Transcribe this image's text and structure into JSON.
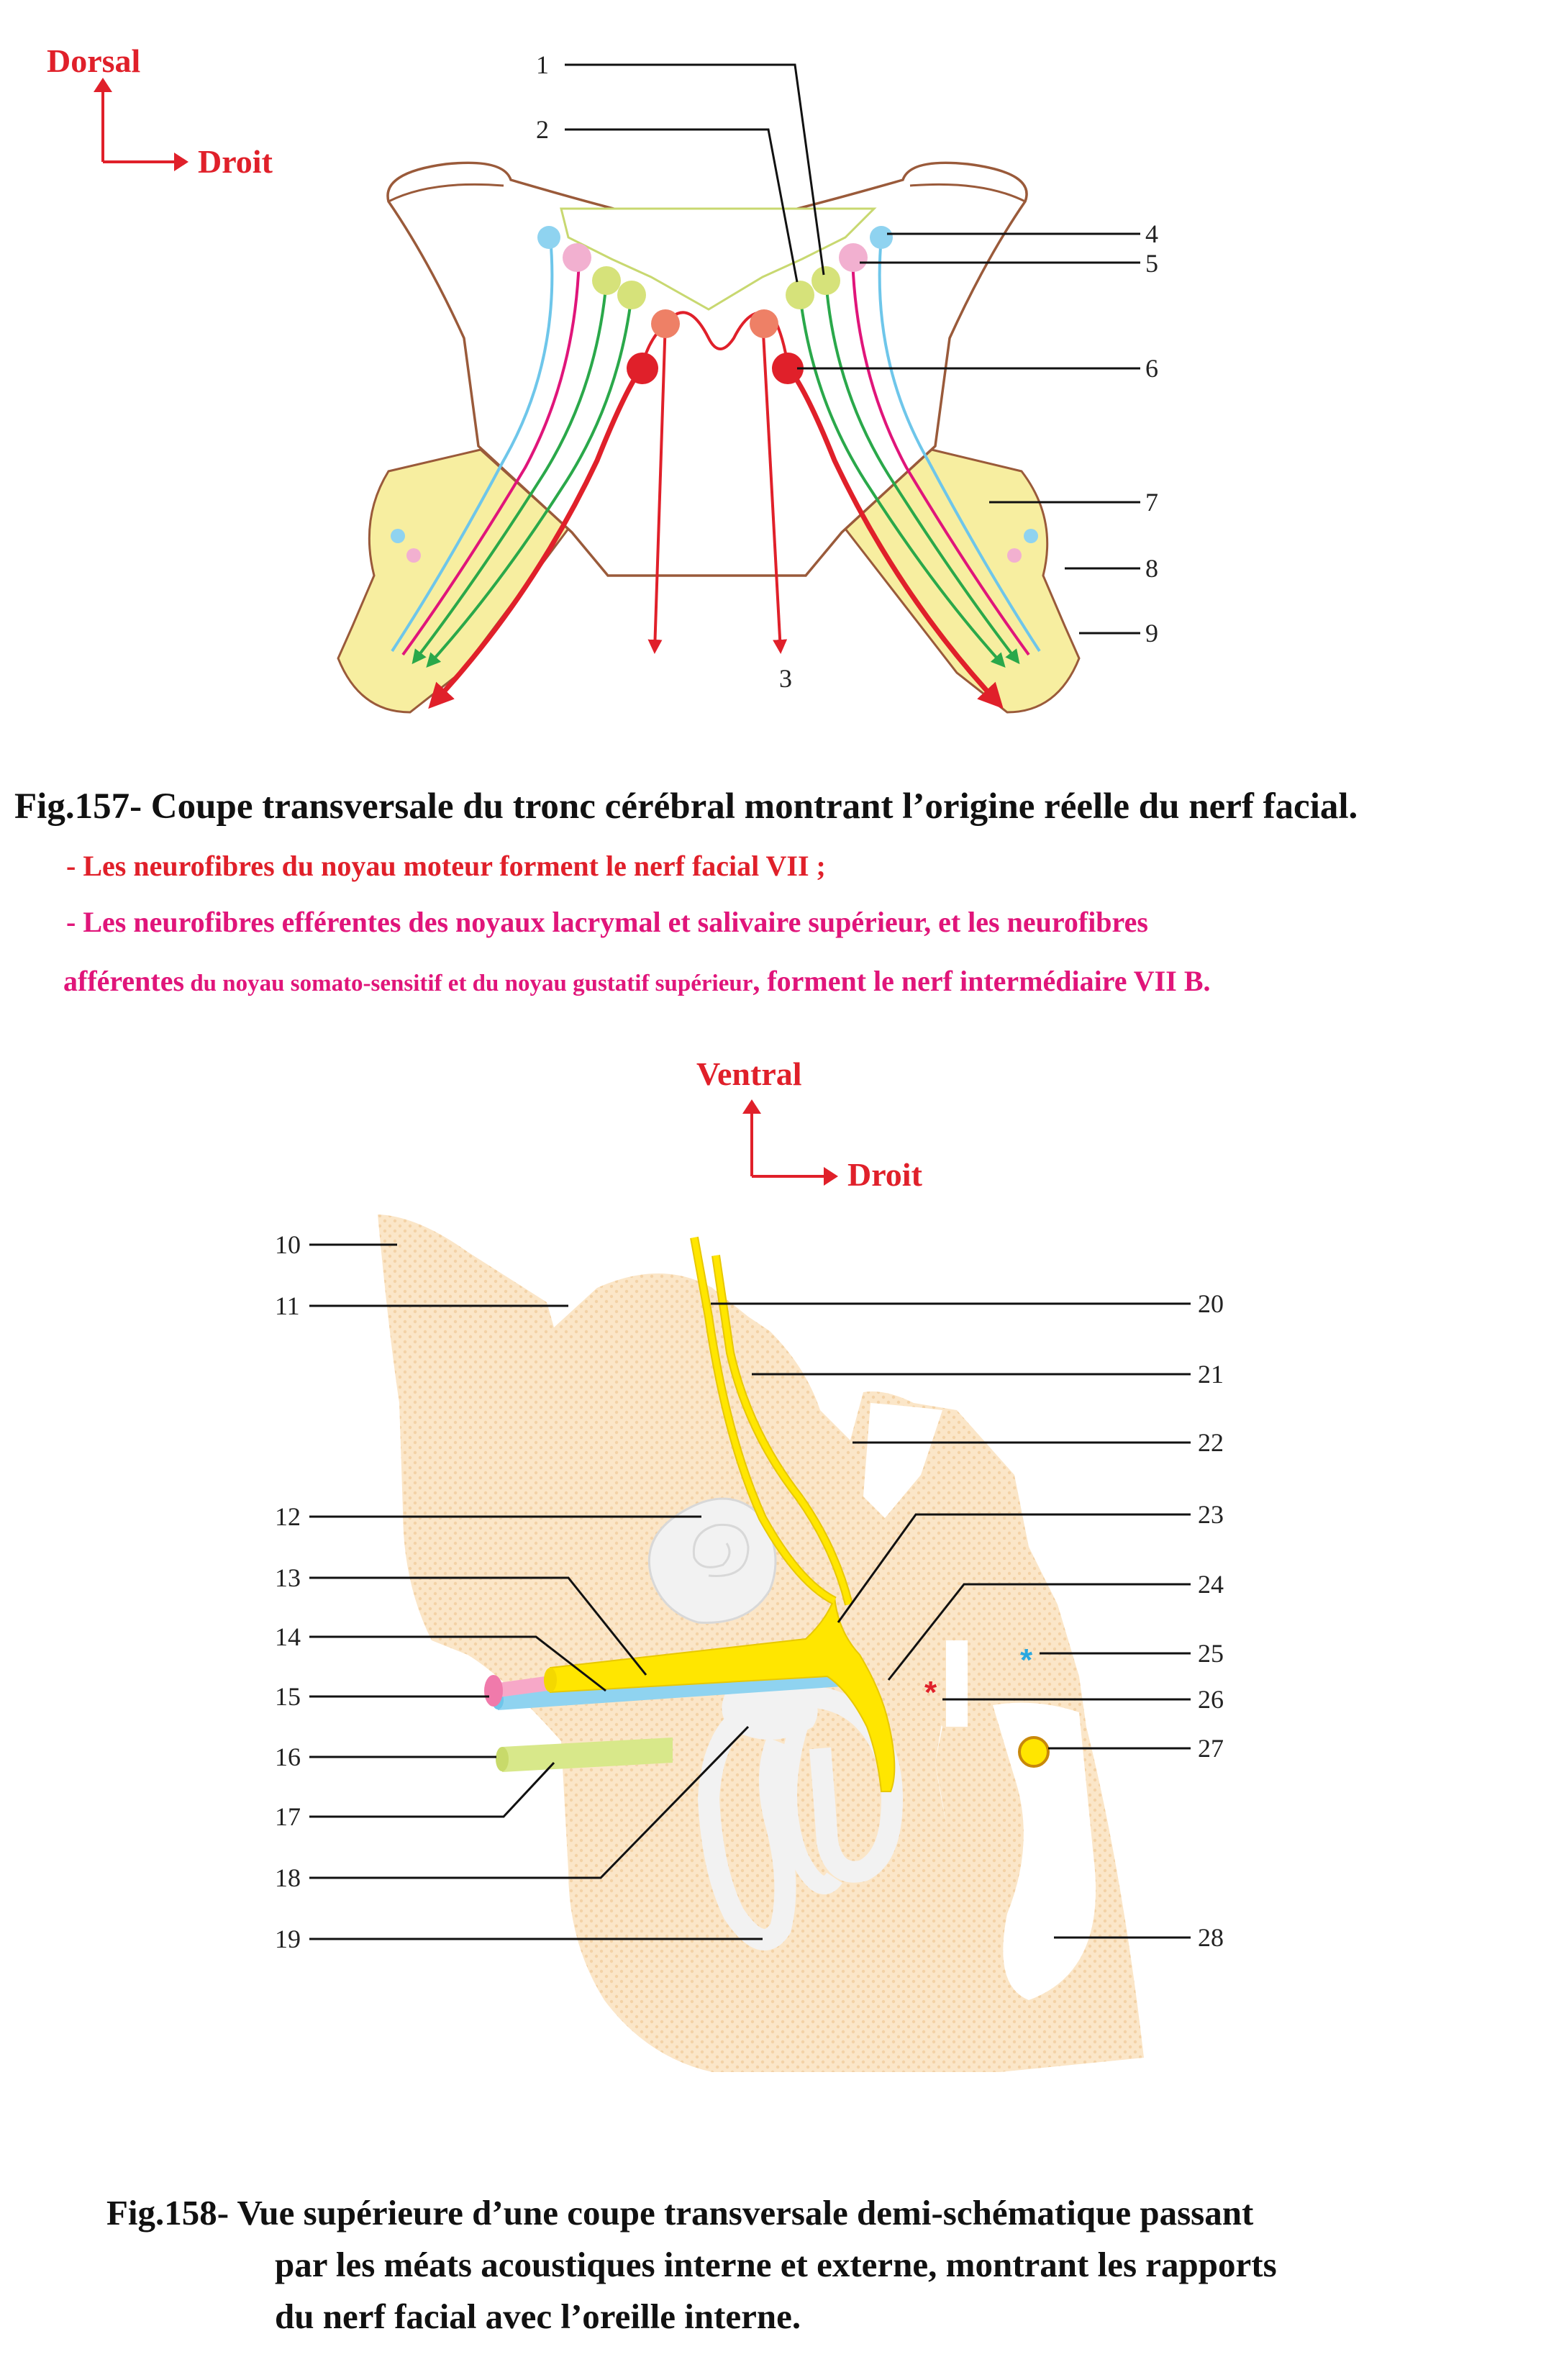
{
  "fig157": {
    "orientation": {
      "up": "Dorsal",
      "right": "Droit"
    },
    "labels": [
      "1",
      "2",
      "3",
      "4",
      "5",
      "6",
      "7",
      "8",
      "9"
    ],
    "caption": "Fig.157- Coupe transversale du tronc cérébral montrant l’origine réelle du nerf facial.",
    "note_motor": "- Les neurofibres du noyau moteur forment le nerf facial VII ;",
    "note_intermediate_a": "- Les neurofibres efférentes des noyaux lacrymal et salivaire supérieur, et les neurofibres",
    "note_intermediate_b1": "afférentes",
    "note_intermediate_b2": " du noyau somato-sensitif et du  noyau gustatif supérieur",
    "note_intermediate_b3": ", forment le nerf intermédiaire VII B.",
    "colors": {
      "motor": "#e0202a",
      "lacrymal": "#6ec6ea",
      "salivary": "#e8a0c8",
      "gustatory": "#2aa84a",
      "sensory_nucleus": "#d6e27a",
      "brainstem_outline": "#9a5a3a",
      "nerve_sheath": "#f7eea0"
    }
  },
  "fig158": {
    "orientation": {
      "up": "Ventral",
      "right": "Droit"
    },
    "labels": [
      "10",
      "11",
      "12",
      "13",
      "14",
      "15",
      "16",
      "17",
      "18",
      "19",
      "20",
      "21",
      "22",
      "23",
      "24",
      "25",
      "26",
      "27",
      "28"
    ],
    "marker_25": "*",
    "marker_26": "*",
    "caption_line1": "Fig.158- Vue supérieure d’une coupe transversale demi-schématique passant",
    "caption_line2": "par les méats acoustiques interne et externe, montrant les rapports",
    "caption_line3": "du nerf facial avec l’oreille interne.",
    "colors": {
      "bone": "#fbe6c8",
      "facial_nerve": "#ffe600",
      "vestibulocochlear": "#8fd3f0",
      "intermediate": "#f7a8c8",
      "artery": "#d8e88a",
      "labyrinth": "#f2f2f2"
    }
  }
}
